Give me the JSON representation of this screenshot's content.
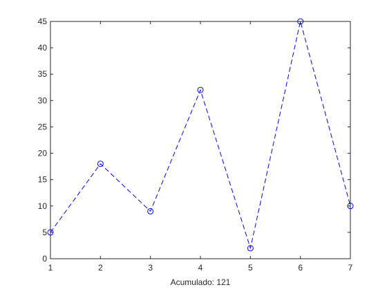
{
  "chart_data": {
    "type": "line",
    "title": "",
    "xlabel": "Acumulado: 121",
    "ylabel": "",
    "x": [
      1,
      2,
      3,
      4,
      5,
      6,
      7
    ],
    "xlim": [
      1,
      7
    ],
    "ylim": [
      0,
      45
    ],
    "xticks": [
      1,
      2,
      3,
      4,
      5,
      6,
      7
    ],
    "yticks": [
      0,
      5,
      10,
      15,
      20,
      25,
      30,
      35,
      40,
      45
    ],
    "grid": false,
    "legend": "none",
    "series": [
      {
        "values": [
          5,
          18,
          9,
          32,
          2,
          45,
          10
        ],
        "color": "#0000ff",
        "line_style": "dashed",
        "marker": "circle"
      }
    ]
  }
}
